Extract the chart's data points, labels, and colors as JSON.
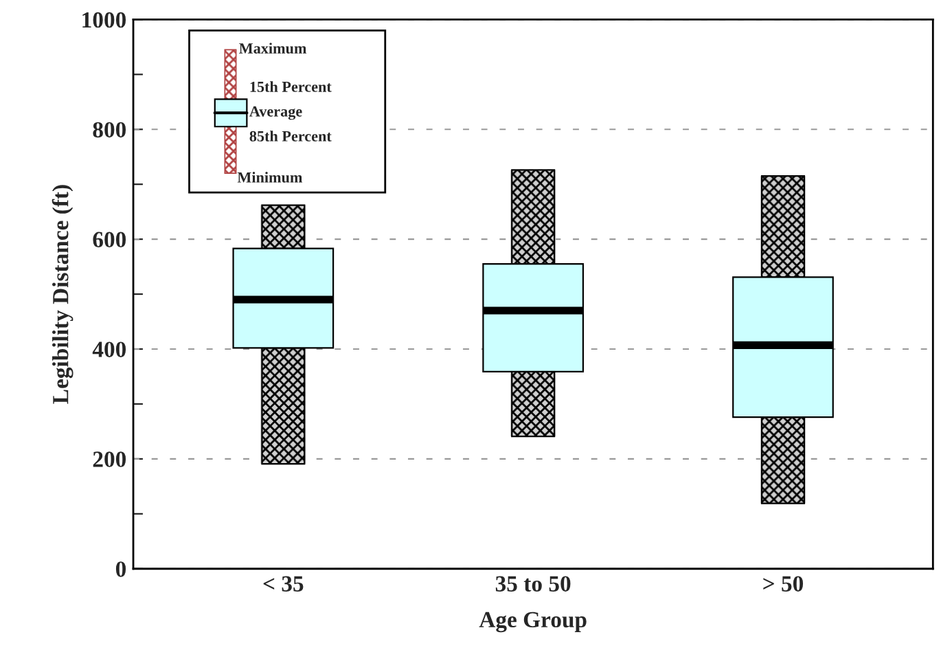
{
  "chart_data": {
    "type": "box",
    "xlabel": "Age Group",
    "ylabel": "Legibility Distance (ft)",
    "categories": [
      "< 35",
      "35 to 50",
      "> 50"
    ],
    "boxes": [
      {
        "low": 191,
        "q1": 402,
        "median": 490,
        "q3": 583,
        "high": 662
      },
      {
        "low": 241,
        "q1": 359,
        "median": 470,
        "q3": 555,
        "high": 726
      },
      {
        "low": 119,
        "q1": 276,
        "median": 407,
        "q3": 531,
        "high": 715
      }
    ],
    "color": "#ccffff",
    "ylim": [
      0,
      1000
    ],
    "yticks": [
      0,
      {
        "value": 100,
        "label": null
      },
      200,
      {
        "value": 300,
        "label": null
      },
      400,
      {
        "value": 500,
        "label": null
      },
      600,
      {
        "value": 700,
        "label": null
      },
      800,
      {
        "value": 900,
        "label": null
      },
      1000
    ],
    "grid": "y",
    "annotations": [
      "Maximum",
      "15th Percent",
      "Average",
      "85th Percent",
      "Minimum"
    ]
  }
}
